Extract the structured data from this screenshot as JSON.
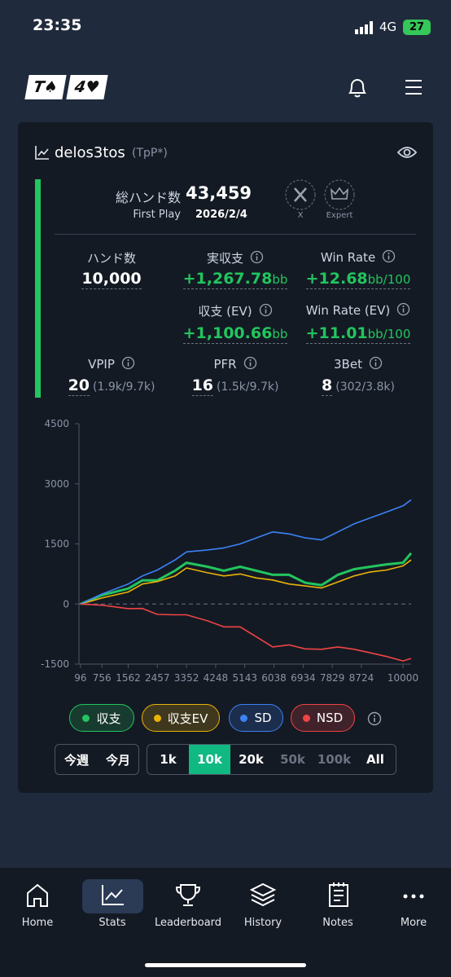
{
  "status_bar": {
    "time": "23:35",
    "network": "4G",
    "battery": "27"
  },
  "header": {
    "logo": [
      "T♠",
      "4♥"
    ]
  },
  "profile": {
    "name": "delos3tos",
    "tag": "(TpP*)",
    "total_hands_label": "総ハンド数",
    "total_hands": "43,459",
    "first_play_label": "First Play",
    "first_play": "2026/2/4",
    "badges": [
      "X",
      "Expert"
    ]
  },
  "stats": {
    "hands": {
      "label": "ハンド数",
      "value": "10,000"
    },
    "real_profit": {
      "label": "実収支",
      "value": "+1,267.78",
      "unit": "bb"
    },
    "win_rate": {
      "label": "Win Rate",
      "value": "+12.68",
      "unit": "bb/100"
    },
    "profit_ev": {
      "label": "収支 (EV)",
      "value": "+1,100.66",
      "unit": "bb"
    },
    "win_rate_ev": {
      "label": "Win Rate (EV)",
      "value": "+11.01",
      "unit": "bb/100"
    },
    "vpip": {
      "label": "VPIP",
      "value": "20",
      "detail": "(1.9k/9.7k)"
    },
    "pfr": {
      "label": "PFR",
      "value": "16",
      "detail": "(1.5k/9.7k)"
    },
    "threebet": {
      "label": "3Bet",
      "value": "8",
      "detail": "(302/3.8k)"
    }
  },
  "chart_data": {
    "type": "line",
    "x": [
      96,
      756,
      1562,
      2000,
      2457,
      3000,
      3352,
      4000,
      4500,
      5000,
      5500,
      6000,
      6500,
      7000,
      7500,
      8000,
      8500,
      9000,
      9500,
      10000,
      10250
    ],
    "series": [
      {
        "name": "収支",
        "color": "#22c55e",
        "values": [
          0,
          220,
          385,
          590,
          590,
          830,
          1030,
          930,
          830,
          930,
          830,
          730,
          730,
          530,
          470,
          730,
          870,
          930,
          990,
          1030,
          1268
        ]
      },
      {
        "name": "収支EV",
        "color": "#eab308",
        "values": [
          0,
          150,
          300,
          500,
          560,
          700,
          900,
          780,
          700,
          750,
          650,
          600,
          500,
          450,
          400,
          550,
          700,
          800,
          850,
          950,
          1100
        ]
      },
      {
        "name": "SD",
        "color": "#3b82f6",
        "values": [
          0,
          250,
          500,
          700,
          850,
          1100,
          1300,
          1350,
          1400,
          1500,
          1650,
          1800,
          1750,
          1650,
          1600,
          1800,
          2000,
          2150,
          2300,
          2450,
          2600
        ]
      },
      {
        "name": "NSD",
        "color": "#ef4444",
        "values": [
          0,
          -30,
          -115,
          -110,
          -260,
          -270,
          -270,
          -420,
          -570,
          -570,
          -820,
          -1070,
          -1020,
          -1120,
          -1130,
          -1070,
          -1130,
          -1220,
          -1310,
          -1420,
          -1360
        ]
      }
    ],
    "xlim": [
      50,
      10250
    ],
    "xticks": [
      96,
      756,
      1562,
      2457,
      3352,
      4248,
      5143,
      6038,
      6934,
      7829,
      8724,
      10000
    ],
    "ylim": [
      -1500,
      4500
    ],
    "yticks": [
      -1500,
      0,
      1500,
      3000,
      4500
    ]
  },
  "range_buttons": {
    "period": [
      "今週",
      "今月"
    ],
    "hands": [
      "1k",
      "10k",
      "20k",
      "50k",
      "100k",
      "All"
    ],
    "active": "10k"
  },
  "nav": [
    "Home",
    "Stats",
    "Leaderboard",
    "History",
    "Notes",
    "More"
  ]
}
